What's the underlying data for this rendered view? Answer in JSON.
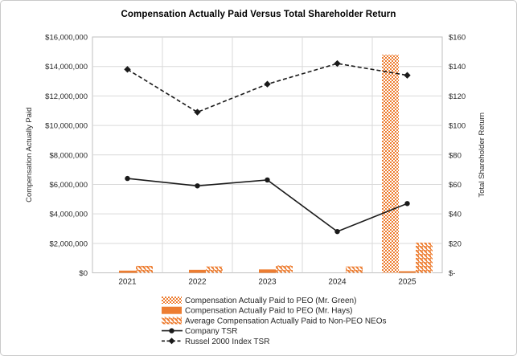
{
  "chart_data": {
    "type": "combo-bar-line",
    "title": "Compensation Actually Paid Versus Total Shareholder Return",
    "categories": [
      "2021",
      "2022",
      "2023",
      "2024",
      "2025"
    ],
    "left_axis": {
      "label": "Compensation Actually Paid",
      "min": 0,
      "max": 16000000,
      "step": 2000000,
      "tick_labels": [
        "$0",
        "$2,000,000",
        "$4,000,000",
        "$6,000,000",
        "$8,000,000",
        "$10,000,000",
        "$12,000,000",
        "$14,000,000",
        "$16,000,000"
      ]
    },
    "right_axis": {
      "label": "Total Shareholder Return",
      "min": 0,
      "max": 160,
      "step": 20,
      "tick_labels": [
        "$-",
        "$20",
        "$40",
        "$60",
        "$80",
        "$100",
        "$120",
        "$140",
        "$160"
      ]
    },
    "bar_series": [
      {
        "name": "Compensation Actually Paid to PEO (Mr. Green)",
        "pattern": "dots",
        "color": "#ED7D31",
        "axis": "left",
        "values": [
          0,
          0,
          0,
          0,
          14800000
        ]
      },
      {
        "name": "Compensation Actually Paid to PEO (Mr. Hays)",
        "pattern": "solid",
        "color": "#ED7D31",
        "axis": "left",
        "values": [
          150000,
          200000,
          230000,
          0,
          110000
        ]
      },
      {
        "name": "Average Compensation Actually Paid to Non-PEO NEOs",
        "pattern": "diagonal",
        "color": "#ED7D31",
        "axis": "left",
        "values": [
          470000,
          430000,
          500000,
          430000,
          2050000
        ]
      }
    ],
    "line_series": [
      {
        "name": "Company TSR",
        "style": "solid",
        "marker": "circle",
        "color": "#1a1a1a",
        "axis": "right",
        "values": [
          64,
          59,
          63,
          28,
          47
        ]
      },
      {
        "name": "Russel 2000 Index TSR",
        "style": "dashed",
        "marker": "diamond",
        "color": "#1a1a1a",
        "axis": "right",
        "values": [
          138,
          109,
          128,
          142,
          134
        ]
      }
    ],
    "grid": true,
    "legend_position": "bottom"
  }
}
